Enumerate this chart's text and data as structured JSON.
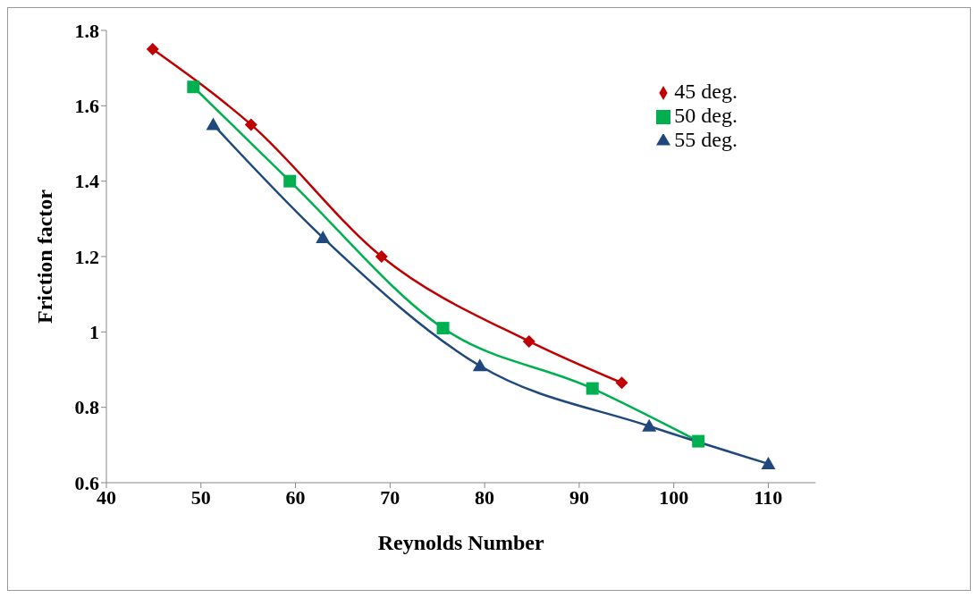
{
  "chart_data": {
    "type": "line",
    "xlabel": "Reynolds Number",
    "ylabel": "Friction factor",
    "xlim": [
      40,
      115
    ],
    "xticks": [
      40,
      50,
      60,
      70,
      80,
      90,
      100,
      110
    ],
    "ylim": [
      0.6,
      1.8
    ],
    "yticks": [
      0.6,
      0.8,
      1,
      1.2,
      1.4,
      1.6,
      1.8
    ],
    "grid": false,
    "legend": "top right",
    "series": [
      {
        "name": "45 deg.",
        "color": "#c00000",
        "marker": "diamond",
        "x": [
          44.9,
          55.3,
          69.1,
          84.7,
          94.5
        ],
        "values": [
          1.75,
          1.55,
          1.2,
          0.975,
          0.865
        ]
      },
      {
        "name": "50 deg.",
        "color": "#00b050",
        "marker": "square",
        "x": [
          49.2,
          59.4,
          75.6,
          91.4,
          102.6
        ],
        "values": [
          1.65,
          1.4,
          1.01,
          0.85,
          0.71
        ]
      },
      {
        "name": "55 deg.",
        "color": "#1f497d",
        "marker": "triangle",
        "x": [
          51.3,
          62.9,
          79.5,
          97.4,
          110
        ],
        "values": [
          1.55,
          1.25,
          0.91,
          0.75,
          0.65
        ]
      }
    ]
  }
}
